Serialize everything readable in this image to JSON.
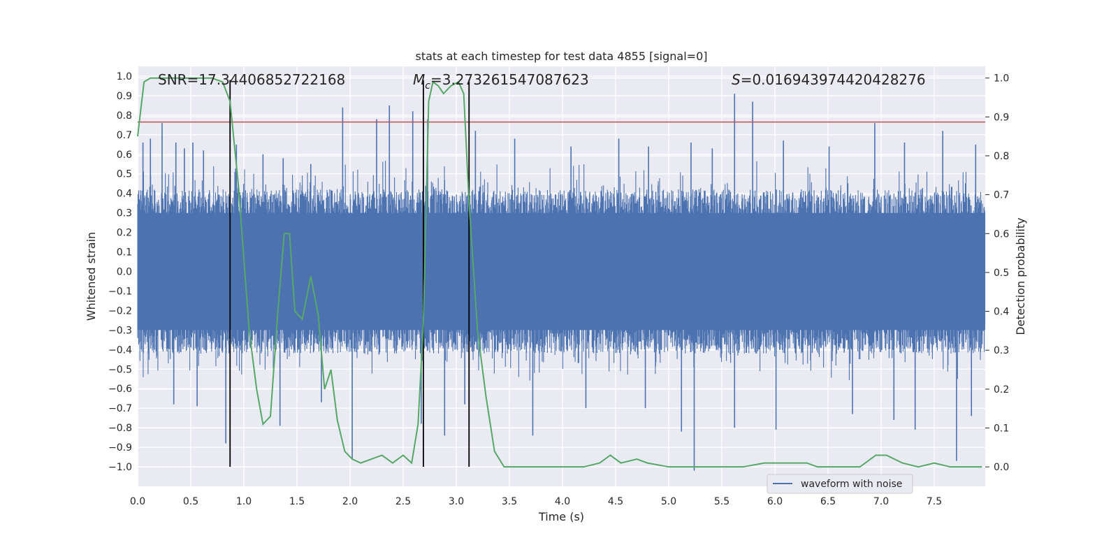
{
  "chart_data": {
    "type": "line",
    "title": "stats at each timestep for test data 4855 [signal=0]",
    "xlabel": "Time (s)",
    "ylabel_left": "Whitened strain",
    "ylabel_right": "Detection probability",
    "xlim": [
      0.0,
      7.98
    ],
    "ylim_left": [
      -1.1,
      1.05
    ],
    "ylim_right": [
      -0.05,
      1.03
    ],
    "x_ticks": [
      "0.0",
      "0.5",
      "1.0",
      "1.5",
      "2.0",
      "2.5",
      "3.0",
      "3.5",
      "4.0",
      "4.5",
      "5.0",
      "5.5",
      "6.0",
      "6.5",
      "7.0",
      "7.5"
    ],
    "y_ticks_left": [
      "1.0",
      "0.9",
      "0.8",
      "0.7",
      "0.6",
      "0.5",
      "0.4",
      "0.3",
      "0.2",
      "0.1",
      "0.0",
      "−0.1",
      "−0.2",
      "−0.3",
      "−0.4",
      "−0.5",
      "−0.6",
      "−0.7",
      "−0.8",
      "−0.9",
      "−1.0"
    ],
    "y_ticks_right": [
      "1.0",
      "0.9",
      "0.8",
      "0.7",
      "0.6",
      "0.5",
      "0.4",
      "0.3",
      "0.2",
      "0.1",
      "0.0"
    ],
    "grid": true,
    "legend": {
      "position": "bottom-right",
      "entries": [
        "waveform with noise"
      ]
    },
    "annotations": {
      "snr": "SNR=17.34406852722168",
      "mc_symbol": "M",
      "mc_sub": "c",
      "mc_value": "=3.273261547087623",
      "s_symbol": "S",
      "s_value": "=0.016943974420428276"
    },
    "threshold_left": 0.765,
    "vertical_lines_x": [
      0.87,
      2.69,
      3.12
    ],
    "waveform": {
      "name": "waveform with noise",
      "envelope_high": 0.4,
      "envelope_low": -0.4,
      "spikes": [
        [
          0.05,
          0.66
        ],
        [
          0.12,
          0.68
        ],
        [
          0.23,
          0.76
        ],
        [
          0.36,
          0.66
        ],
        [
          0.44,
          0.63
        ],
        [
          0.52,
          0.66
        ],
        [
          0.62,
          0.62
        ],
        [
          0.87,
          0.87
        ],
        [
          0.93,
          0.65
        ],
        [
          1.18,
          0.6
        ],
        [
          1.37,
          0.58
        ],
        [
          1.63,
          0.55
        ],
        [
          1.93,
          0.84
        ],
        [
          2.25,
          0.78
        ],
        [
          2.37,
          0.85
        ],
        [
          2.59,
          0.82
        ],
        [
          2.73,
          0.78
        ],
        [
          3.18,
          0.72
        ],
        [
          3.55,
          0.68
        ],
        [
          4.08,
          0.64
        ],
        [
          4.53,
          0.68
        ],
        [
          4.81,
          0.64
        ],
        [
          5.21,
          0.66
        ],
        [
          5.41,
          0.63
        ],
        [
          5.62,
          0.91
        ],
        [
          5.79,
          0.87
        ],
        [
          6.08,
          0.67
        ],
        [
          6.51,
          0.64
        ],
        [
          6.94,
          0.76
        ],
        [
          7.22,
          0.66
        ],
        [
          7.58,
          0.72
        ],
        [
          7.89,
          0.65
        ],
        [
          0.83,
          -0.88
        ],
        [
          0.34,
          -0.68
        ],
        [
          0.56,
          -0.69
        ],
        [
          1.34,
          -0.79
        ],
        [
          1.73,
          -0.67
        ],
        [
          2.02,
          -0.96
        ],
        [
          2.67,
          -0.78
        ],
        [
          2.89,
          -0.84
        ],
        [
          3.08,
          -0.68
        ],
        [
          3.72,
          -0.84
        ],
        [
          4.22,
          -0.7
        ],
        [
          4.78,
          -0.7
        ],
        [
          5.12,
          -0.82
        ],
        [
          5.24,
          -1.02
        ],
        [
          5.62,
          -0.8
        ],
        [
          6.01,
          -0.81
        ],
        [
          6.73,
          -0.73
        ],
        [
          7.12,
          -0.76
        ],
        [
          7.32,
          -0.81
        ],
        [
          7.71,
          -0.97
        ],
        [
          7.85,
          -0.74
        ]
      ]
    },
    "probability": {
      "x": [
        0.0,
        0.06,
        0.12,
        0.25,
        0.5,
        0.7,
        0.8,
        0.87,
        0.95,
        1.05,
        1.12,
        1.18,
        1.25,
        1.32,
        1.38,
        1.43,
        1.48,
        1.55,
        1.63,
        1.7,
        1.76,
        1.82,
        1.88,
        1.95,
        2.02,
        2.1,
        2.2,
        2.3,
        2.4,
        2.5,
        2.58,
        2.64,
        2.69,
        2.74,
        2.78,
        2.83,
        2.88,
        2.95,
        3.02,
        3.07,
        3.12,
        3.2,
        3.28,
        3.36,
        3.45,
        3.6,
        3.8,
        4.0,
        4.2,
        4.35,
        4.45,
        4.55,
        4.7,
        4.8,
        5.0,
        5.1,
        5.2,
        5.35,
        5.5,
        5.7,
        5.9,
        6.1,
        6.3,
        6.4,
        6.6,
        6.8,
        6.95,
        7.05,
        7.2,
        7.35,
        7.5,
        7.65,
        7.8,
        7.95
      ],
      "values": [
        0.85,
        0.99,
        1.0,
        1.0,
        1.0,
        1.0,
        0.99,
        0.94,
        0.72,
        0.35,
        0.2,
        0.11,
        0.13,
        0.4,
        0.6,
        0.6,
        0.4,
        0.38,
        0.49,
        0.39,
        0.2,
        0.25,
        0.12,
        0.04,
        0.02,
        0.01,
        0.02,
        0.03,
        0.01,
        0.03,
        0.01,
        0.11,
        0.37,
        0.94,
        0.99,
        0.98,
        0.96,
        0.98,
        0.99,
        0.96,
        0.68,
        0.35,
        0.18,
        0.04,
        0.0,
        0.0,
        0.0,
        0.0,
        0.0,
        0.01,
        0.03,
        0.01,
        0.02,
        0.01,
        0.0,
        0.0,
        0.0,
        0.0,
        0.0,
        0.0,
        0.01,
        0.01,
        0.01,
        0.0,
        0.0,
        0.0,
        0.03,
        0.03,
        0.01,
        0.0,
        0.01,
        0.0,
        0.0,
        0.0
      ]
    },
    "colors": {
      "background": "#eaeaf2",
      "grid": "#ffffff",
      "waveform": "#4c72b0",
      "probability": "#55a868",
      "threshold": "#c44e52",
      "vlines": "#000000",
      "text": "#262626"
    }
  }
}
